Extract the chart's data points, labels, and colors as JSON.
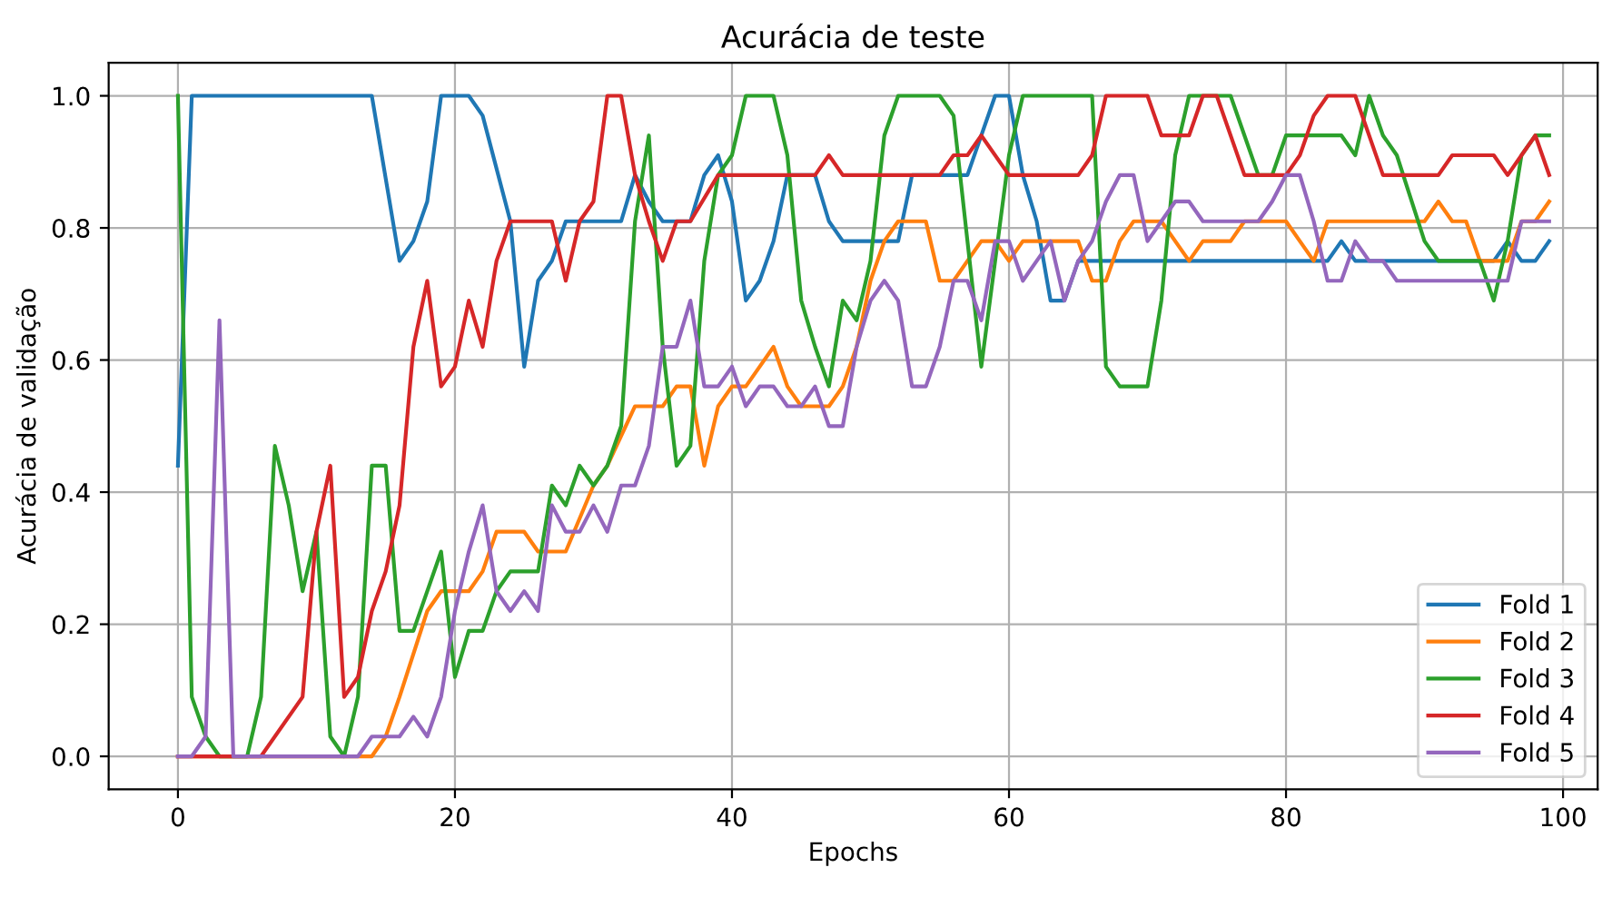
{
  "chart_data": {
    "type": "line",
    "title": "Acurácia de teste",
    "xlabel": "Epochs",
    "ylabel": "Acurácia de validação",
    "xlim": [
      -5,
      102.5
    ],
    "ylim": [
      -0.05,
      1.05
    ],
    "xticks": [
      0,
      20,
      40,
      60,
      80,
      100
    ],
    "yticks": [
      {
        "value": 0,
        "label": "0.0"
      },
      {
        "value": 0.2,
        "label": "0.2"
      },
      {
        "value": 0.4,
        "label": "0.4"
      },
      {
        "value": 0.6,
        "label": "0.6"
      },
      {
        "value": 0.8,
        "label": "0.8"
      },
      {
        "value": 1.0,
        "label": "1.0"
      }
    ],
    "grid": true,
    "legend": "bottom right",
    "line_style": "solid",
    "marker": "none",
    "series": [
      {
        "name": "Fold 1",
        "color": "#1f77b4",
        "x": [
          0,
          1,
          14,
          16,
          17,
          18,
          19,
          21,
          22,
          24,
          25,
          26,
          27,
          28,
          32,
          33,
          34,
          35,
          37,
          38,
          39,
          40,
          41,
          42,
          43,
          44,
          46,
          47,
          48,
          52,
          53,
          57,
          59,
          60,
          61,
          62,
          63,
          64,
          65,
          83,
          84,
          85,
          95,
          96,
          97,
          98,
          99
        ],
        "values": [
          0.44,
          1.0,
          1.0,
          0.75,
          0.78,
          0.84,
          1.0,
          1.0,
          0.97,
          0.81,
          0.59,
          0.72,
          0.75,
          0.81,
          0.81,
          0.88,
          0.84,
          0.81,
          0.81,
          0.88,
          0.91,
          0.84,
          0.69,
          0.72,
          0.78,
          0.88,
          0.88,
          0.81,
          0.78,
          0.78,
          0.88,
          0.88,
          1.0,
          1.0,
          0.88,
          0.81,
          0.69,
          0.69,
          0.75,
          0.75,
          0.78,
          0.75,
          0.75,
          0.78,
          0.75,
          0.75,
          0.78
        ]
      },
      {
        "name": "Fold 2",
        "color": "#ff7f0e",
        "x": [
          0,
          14,
          15,
          16,
          18,
          19,
          21,
          22,
          23,
          25,
          26,
          28,
          30,
          31,
          33,
          35,
          36,
          37,
          38,
          39,
          40,
          41,
          42,
          43,
          44,
          45,
          47,
          48,
          49,
          50,
          51,
          52,
          54,
          55,
          56,
          57,
          58,
          59,
          60,
          61,
          65,
          66,
          67,
          68,
          69,
          71,
          73,
          74,
          76,
          77,
          80,
          81,
          82,
          83,
          90,
          91,
          92,
          93,
          94,
          96,
          97,
          98,
          99
        ],
        "values": [
          0,
          0,
          0.03,
          0.09,
          0.22,
          0.25,
          0.25,
          0.28,
          0.34,
          0.34,
          0.31,
          0.31,
          0.41,
          0.44,
          0.53,
          0.53,
          0.56,
          0.56,
          0.44,
          0.53,
          0.56,
          0.56,
          0.59,
          0.62,
          0.56,
          0.53,
          0.53,
          0.56,
          0.62,
          0.72,
          0.78,
          0.81,
          0.81,
          0.72,
          0.72,
          0.75,
          0.78,
          0.78,
          0.75,
          0.78,
          0.78,
          0.72,
          0.72,
          0.78,
          0.81,
          0.81,
          0.75,
          0.78,
          0.78,
          0.81,
          0.81,
          0.78,
          0.75,
          0.81,
          0.81,
          0.84,
          0.81,
          0.81,
          0.75,
          0.75,
          0.81,
          0.81,
          0.84
        ]
      },
      {
        "name": "Fold 3",
        "color": "#2ca02c",
        "x": [
          0,
          1,
          2,
          3,
          5,
          6,
          7,
          8,
          9,
          10,
          11,
          12,
          13,
          14,
          15,
          16,
          17,
          19,
          20,
          21,
          22,
          23,
          24,
          26,
          27,
          28,
          29,
          30,
          31,
          32,
          33,
          34,
          35,
          36,
          37,
          38,
          39,
          40,
          41,
          43,
          44,
          45,
          46,
          47,
          48,
          49,
          50,
          51,
          52,
          55,
          56,
          57,
          58,
          59,
          60,
          61,
          66,
          67,
          68,
          70,
          71,
          72,
          73,
          76,
          77,
          78,
          79,
          80,
          84,
          85,
          86,
          87,
          88,
          90,
          91,
          94,
          95,
          96,
          97,
          98,
          99
        ],
        "values": [
          1.0,
          0.09,
          0.03,
          0,
          0,
          0.09,
          0.47,
          0.38,
          0.25,
          0.34,
          0.03,
          0,
          0.09,
          0.44,
          0.44,
          0.19,
          0.19,
          0.31,
          0.12,
          0.19,
          0.19,
          0.25,
          0.28,
          0.28,
          0.41,
          0.38,
          0.44,
          0.41,
          0.44,
          0.5,
          0.81,
          0.94,
          0.62,
          0.44,
          0.47,
          0.75,
          0.88,
          0.91,
          1.0,
          1.0,
          0.91,
          0.69,
          0.62,
          0.56,
          0.69,
          0.66,
          0.75,
          0.94,
          1.0,
          1.0,
          0.97,
          0.78,
          0.59,
          0.75,
          0.91,
          1.0,
          1.0,
          0.59,
          0.56,
          0.56,
          0.69,
          0.91,
          1.0,
          1.0,
          0.94,
          0.88,
          0.88,
          0.94,
          0.94,
          0.91,
          1.0,
          0.94,
          0.91,
          0.78,
          0.75,
          0.75,
          0.69,
          0.78,
          0.91,
          0.94,
          0.94
        ]
      },
      {
        "name": "Fold 4",
        "color": "#d62728",
        "x": [
          0,
          6,
          9,
          10,
          11,
          12,
          13,
          14,
          15,
          16,
          17,
          18,
          19,
          20,
          21,
          22,
          23,
          24,
          27,
          28,
          29,
          30,
          31,
          32,
          33,
          34,
          35,
          36,
          37,
          39,
          46,
          47,
          48,
          55,
          56,
          57,
          58,
          60,
          65,
          66,
          67,
          70,
          71,
          73,
          74,
          75,
          77,
          80,
          81,
          82,
          83,
          85,
          87,
          91,
          92,
          95,
          96,
          97,
          98,
          99
        ],
        "values": [
          0,
          0,
          0.09,
          0.34,
          0.44,
          0.09,
          0.12,
          0.22,
          0.28,
          0.38,
          0.62,
          0.72,
          0.56,
          0.59,
          0.69,
          0.62,
          0.75,
          0.81,
          0.81,
          0.72,
          0.81,
          0.84,
          1.0,
          1.0,
          0.88,
          0.81,
          0.75,
          0.81,
          0.81,
          0.88,
          0.88,
          0.91,
          0.88,
          0.88,
          0.91,
          0.91,
          0.94,
          0.88,
          0.88,
          0.91,
          1.0,
          1.0,
          0.94,
          0.94,
          1.0,
          1.0,
          0.88,
          0.88,
          0.91,
          0.97,
          1.0,
          1.0,
          0.88,
          0.88,
          0.91,
          0.91,
          0.88,
          0.91,
          0.94,
          0.88
        ]
      },
      {
        "name": "Fold 5",
        "color": "#9467bd",
        "x": [
          0,
          1,
          2,
          3,
          4,
          13,
          14,
          16,
          17,
          18,
          19,
          20,
          21,
          22,
          23,
          24,
          25,
          26,
          27,
          28,
          29,
          30,
          31,
          32,
          33,
          34,
          35,
          36,
          37,
          38,
          39,
          40,
          41,
          42,
          43,
          44,
          45,
          46,
          47,
          48,
          49,
          50,
          51,
          52,
          53,
          54,
          55,
          56,
          57,
          58,
          59,
          60,
          61,
          62,
          63,
          64,
          65,
          66,
          67,
          68,
          69,
          70,
          71,
          72,
          73,
          74,
          78,
          79,
          80,
          81,
          82,
          83,
          84,
          85,
          86,
          87,
          88,
          96,
          97,
          99
        ],
        "values": [
          0,
          0,
          0.03,
          0.66,
          0,
          0,
          0.03,
          0.03,
          0.06,
          0.03,
          0.09,
          0.22,
          0.31,
          0.38,
          0.25,
          0.22,
          0.25,
          0.22,
          0.38,
          0.34,
          0.34,
          0.38,
          0.34,
          0.41,
          0.41,
          0.47,
          0.62,
          0.62,
          0.69,
          0.56,
          0.56,
          0.59,
          0.53,
          0.56,
          0.56,
          0.53,
          0.53,
          0.56,
          0.5,
          0.5,
          0.62,
          0.69,
          0.72,
          0.69,
          0.56,
          0.56,
          0.62,
          0.72,
          0.72,
          0.66,
          0.78,
          0.78,
          0.72,
          0.75,
          0.78,
          0.69,
          0.75,
          0.78,
          0.84,
          0.88,
          0.88,
          0.78,
          0.81,
          0.84,
          0.84,
          0.81,
          0.81,
          0.84,
          0.88,
          0.88,
          0.81,
          0.72,
          0.72,
          0.78,
          0.75,
          0.75,
          0.72,
          0.72,
          0.81,
          0.81
        ]
      }
    ]
  }
}
